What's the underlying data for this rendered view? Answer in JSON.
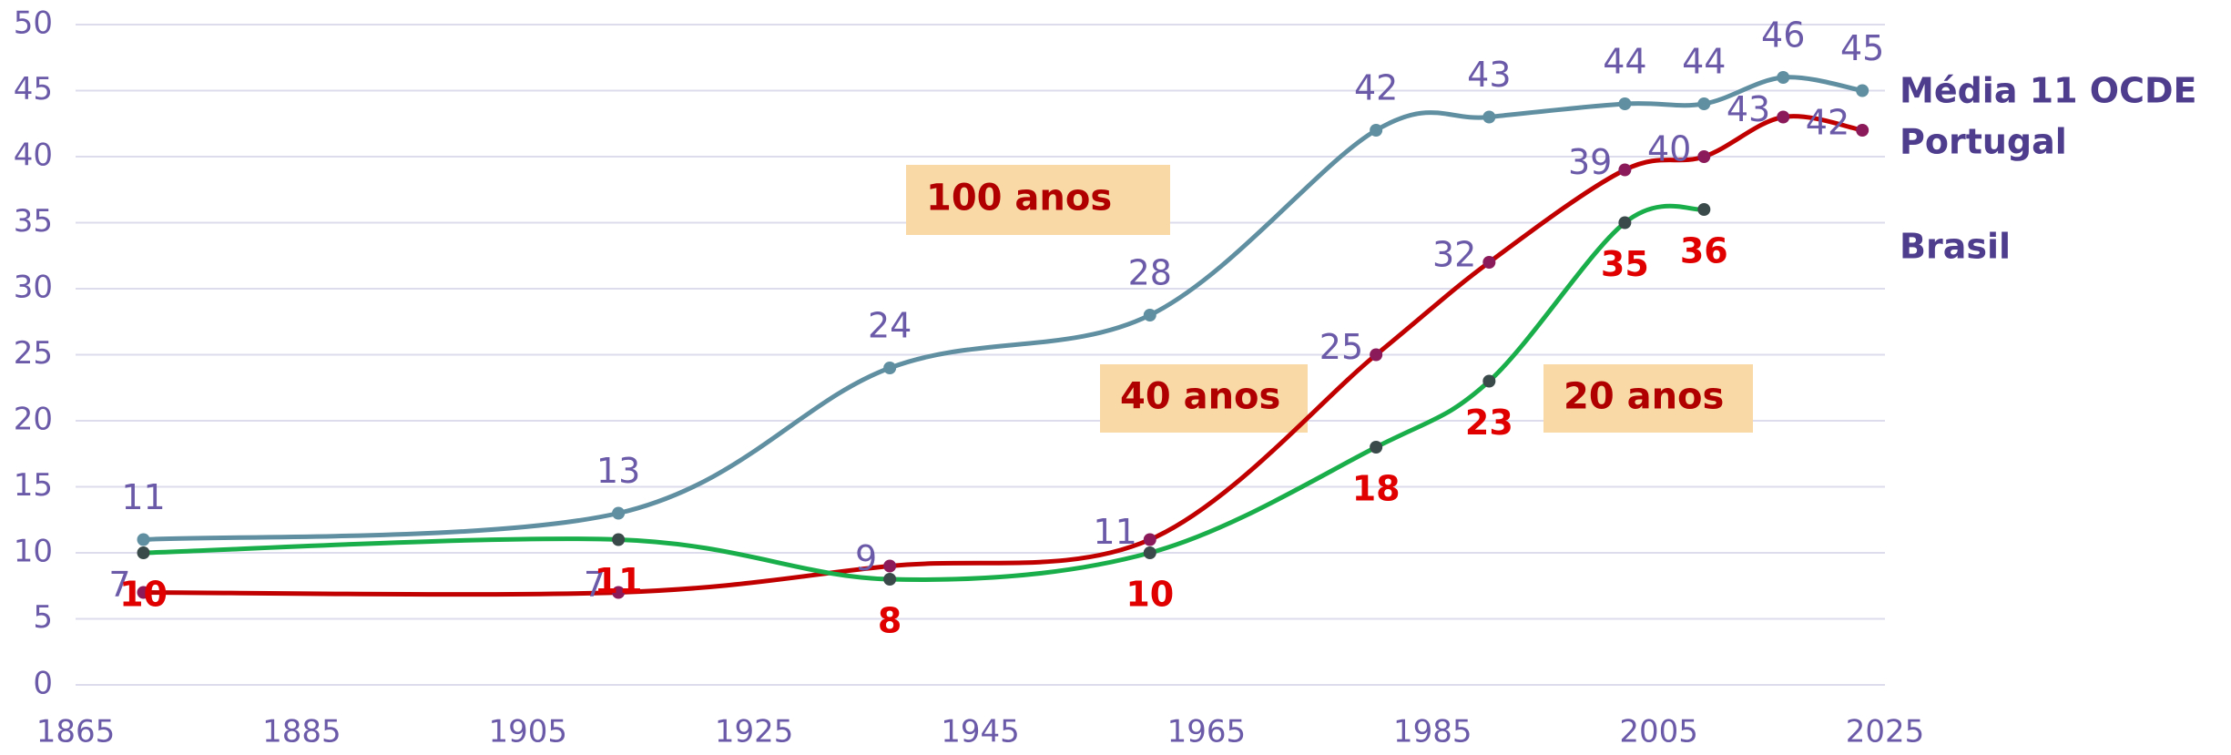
{
  "chart_data": {
    "type": "line",
    "x": [
      1871,
      1913,
      1937,
      1960,
      1980,
      1990,
      2002,
      2009,
      2016,
      2023
    ],
    "series": [
      {
        "name": "Média 11 OCDE",
        "color": "#5f8fa0",
        "values": [
          11,
          13,
          24,
          28,
          42,
          43,
          44,
          44,
          46,
          45
        ]
      },
      {
        "name": "Portugal",
        "color": "#c00000",
        "values": [
          7,
          7,
          9,
          11,
          25,
          32,
          39,
          40,
          43,
          42
        ]
      },
      {
        "name": "Brasil",
        "color": "#1aae4a",
        "values": [
          10,
          11,
          8,
          10,
          18,
          23,
          35,
          36,
          null,
          null
        ]
      }
    ],
    "annotations": [
      "100 anos",
      "40 anos",
      "20 anos"
    ],
    "xlim": [
      1865,
      2025
    ],
    "xticks": [
      1865,
      1885,
      1905,
      1925,
      1945,
      1965,
      1985,
      2005,
      2025
    ],
    "ylim": [
      0,
      50
    ],
    "yticks": [
      0,
      5,
      10,
      15,
      20,
      25,
      30,
      35,
      40,
      45,
      50
    ],
    "grid": true
  }
}
